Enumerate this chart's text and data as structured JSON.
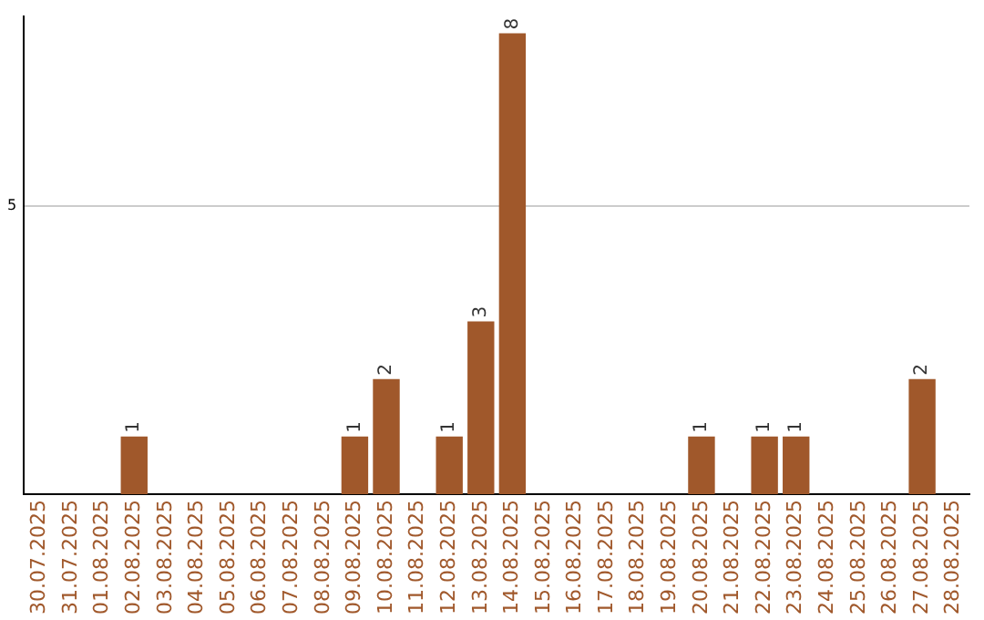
{
  "chart_data": {
    "type": "bar",
    "categories": [
      "30.07.2025",
      "31.07.2025",
      "01.08.2025",
      "02.08.2025",
      "03.08.2025",
      "04.08.2025",
      "05.08.2025",
      "06.08.2025",
      "07.08.2025",
      "08.08.2025",
      "09.08.2025",
      "10.08.2025",
      "11.08.2025",
      "12.08.2025",
      "13.08.2025",
      "14.08.2025",
      "15.08.2025",
      "16.08.2025",
      "17.08.2025",
      "18.08.2025",
      "19.08.2025",
      "20.08.2025",
      "21.08.2025",
      "22.08.2025",
      "23.08.2025",
      "24.08.2025",
      "25.08.2025",
      "26.08.2025",
      "27.08.2025",
      "28.08.2025"
    ],
    "values": [
      0,
      0,
      0,
      1,
      0,
      0,
      0,
      0,
      0,
      0,
      1,
      2,
      0,
      1,
      3,
      8,
      0,
      0,
      0,
      0,
      0,
      1,
      0,
      1,
      1,
      0,
      0,
      0,
      2,
      0
    ],
    "value_labels": [
      null,
      null,
      null,
      "1",
      null,
      null,
      null,
      null,
      null,
      null,
      "1",
      "2",
      null,
      "1",
      "3",
      "8",
      null,
      null,
      null,
      null,
      null,
      "1",
      null,
      "1",
      "1",
      null,
      null,
      null,
      "2",
      null
    ],
    "color": "#a0582b",
    "ylim": [
      0,
      8.3
    ],
    "yticks": [
      5
    ],
    "grid": "y"
  }
}
